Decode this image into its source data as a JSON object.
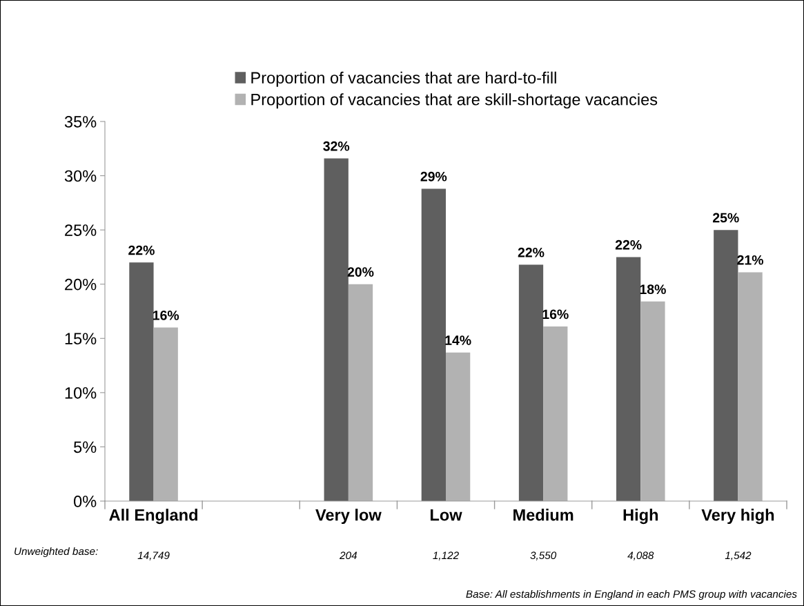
{
  "chart_data": {
    "type": "bar",
    "categories": [
      "All England",
      null,
      "Very low",
      "Low",
      "Medium",
      "High",
      "Very high"
    ],
    "series": [
      {
        "name": "Proportion of vacancies that are hard-to-fill",
        "color": "#5f5f5f",
        "values": [
          22.0,
          null,
          31.6,
          28.8,
          21.8,
          22.5,
          25.0
        ],
        "value_labels": [
          "22%",
          null,
          "32%",
          "29%",
          "22%",
          "22%",
          "25%"
        ]
      },
      {
        "name": "Proportion of vacancies that are skill-shortage vacancies",
        "color": "#b2b2b2",
        "values": [
          16.0,
          null,
          20.0,
          13.7,
          16.1,
          18.4,
          21.1
        ],
        "value_labels": [
          "16%",
          null,
          "20%",
          "14%",
          "16%",
          "18%",
          "21%"
        ]
      }
    ],
    "ylim": [
      0,
      35
    ],
    "yticks": [
      {
        "value": 0,
        "label": "0%"
      },
      {
        "value": 5,
        "label": "5%"
      },
      {
        "value": 10,
        "label": "10%"
      },
      {
        "value": 15,
        "label": "15%"
      },
      {
        "value": 20,
        "label": "20%"
      },
      {
        "value": 25,
        "label": "25%"
      },
      {
        "value": 30,
        "label": "30%"
      },
      {
        "value": 35,
        "label": "35%"
      }
    ],
    "grid": false,
    "legend": "top",
    "annotations": [
      "Unweighted base:",
      "14,749",
      "204",
      "1,122",
      "3,550",
      "4,088",
      "1,542",
      "Base: All establishments in England in each PMS group with vacancies"
    ]
  }
}
